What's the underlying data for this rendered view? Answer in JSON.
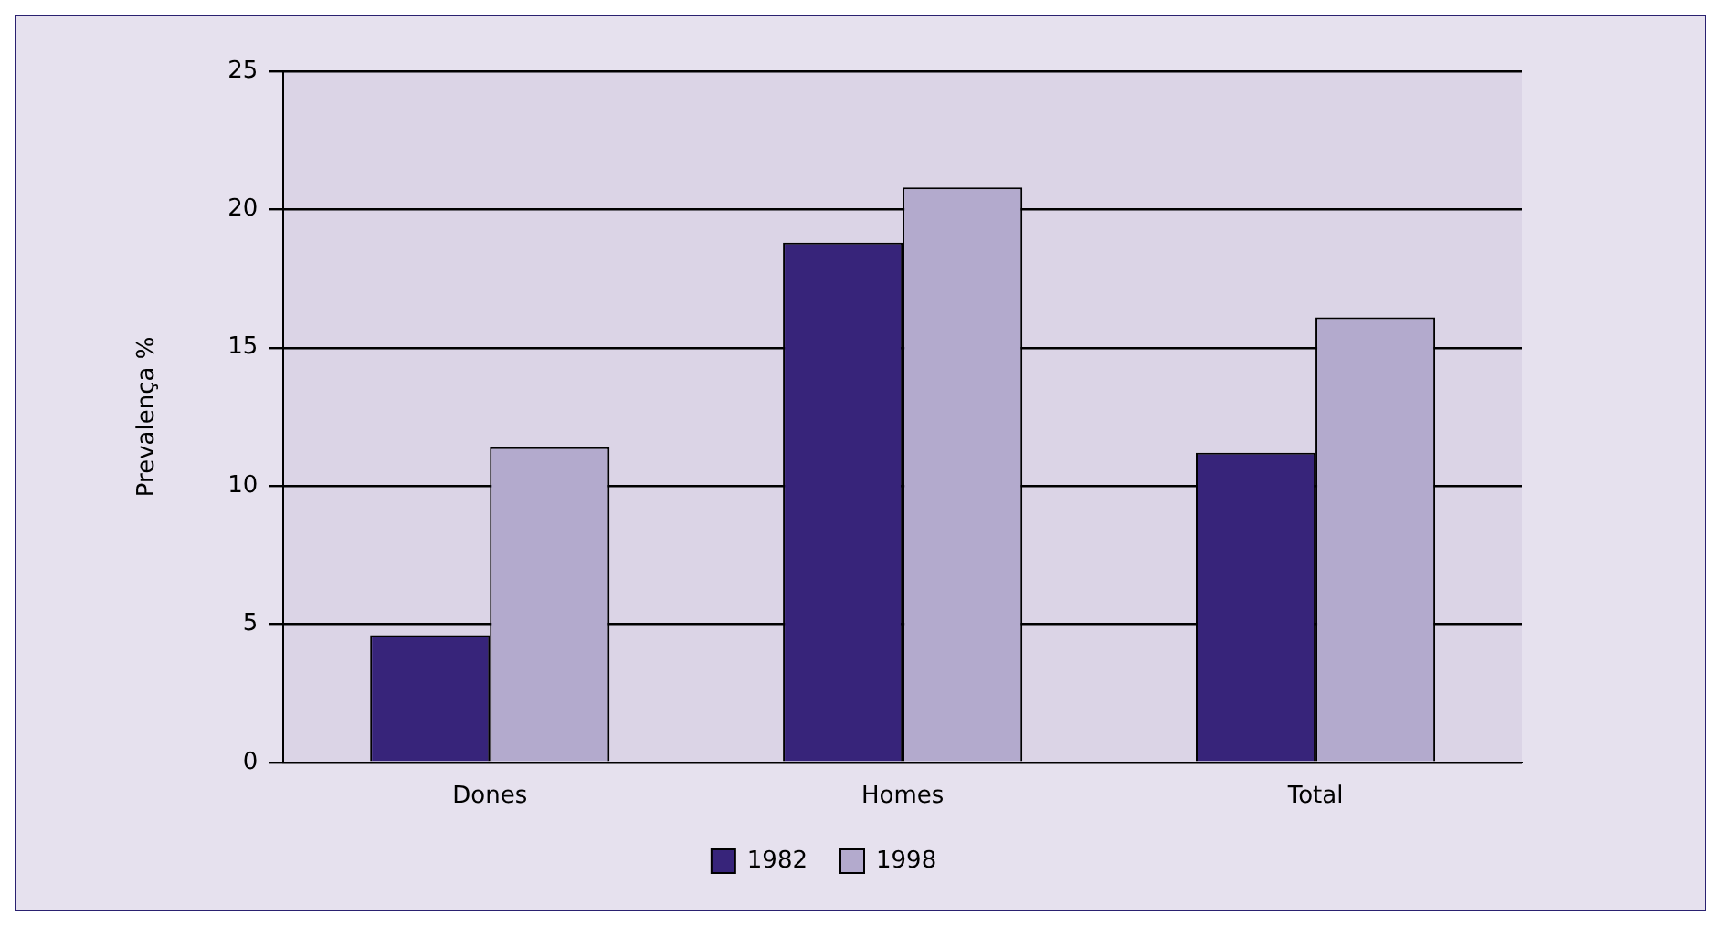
{
  "chart_data": {
    "type": "bar",
    "ylabel": "Prevalença %",
    "categories": [
      "Dones",
      "Homes",
      "Total"
    ],
    "series": [
      {
        "name": "1982",
        "color": "#37247a",
        "values": [
          4.6,
          18.8,
          11.2
        ]
      },
      {
        "name": "1998",
        "color": "#b3aacd",
        "values": [
          11.4,
          20.8,
          16.1
        ]
      }
    ],
    "ylim": [
      0,
      25
    ],
    "yticks": [
      0,
      5,
      10,
      15,
      20,
      25
    ],
    "grid": "y",
    "legend": "bottom"
  }
}
